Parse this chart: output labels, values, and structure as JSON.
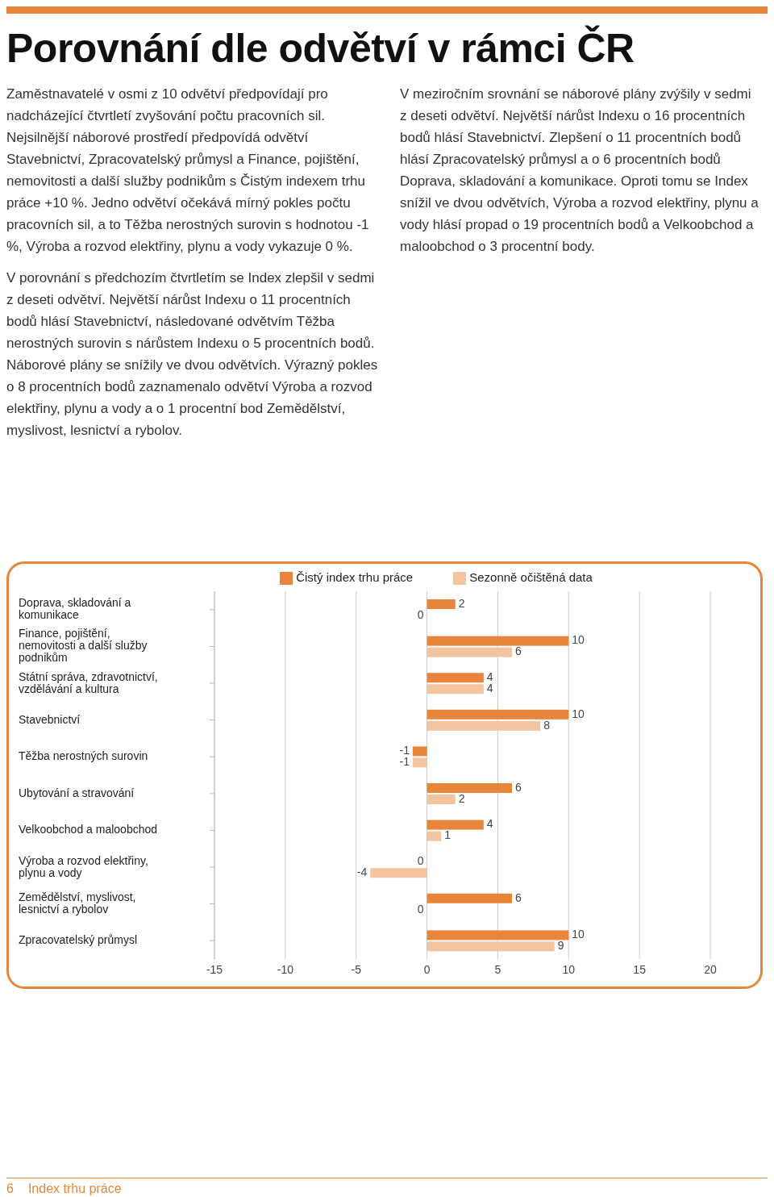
{
  "chart_data": {
    "type": "bar",
    "orientation": "horizontal",
    "title": "Porovnání dle odvětví v rámci ČR",
    "annotations": [
      "Zaměstnavatelé v osmi z 10 odvětví předpovídají pro nadcházející čtvrtletí zvyšování počtu pracovních sil. Nejsilnější náborové prostředí předpovídá odvětví Stavebnictví, Zpracovatelský průmysl a Finance, pojištění, nemovitosti a další služby podnikům s Čistým indexem trhu práce +10 %. Jedno odvětví očekává mírný pokles počtu pracovních sil, a to Těžba nerostných surovin s hodnotou -1 %, Výroba a rozvod elektřiny, plynu a vody vykazuje 0 %.",
      "V porovnání s předchozím čtvrtletím se Index zlepšil v sedmi z deseti odvětví. Největší nárůst Indexu o 11 procentních bodů hlásí Stavebnictví, následované odvětvím Těžba nerostných surovin s nárůstem Indexu o 5 procentních bodů. Náborové plány se snížily ve dvou odvětvích. Výrazný pokles o 8 procentních bodů zaznamenalo odvětví Výroba a rozvod elektřiny, plynu a vody a o 1 procentní bod Zemědělství, myslivost, lesnictví a rybolov.",
      "V meziročním srovnání se náborové plány zvýšily v sedmi z deseti odvětví. Největší nárůst Indexu o 16 procentních bodů hlásí Stavebnictví. Zlepšení o 11 procentních bodů hlásí Zpracovatelský průmysl a o 6 procentních bodů Doprava, skladování a komunikace. Oproti tomu se Index snížil ve dvou odvětvích, Výroba a rozvod elektřiny, plynu a vody hlásí propad o 19 procentních bodů a Velkoobchod a maloobchod o 3 procentní body.",
      "6",
      "Index trhu práce"
    ],
    "categories": [
      "Doprava, skladování a komunikace",
      "Finance, pojištění, nemovitosti a další služby podnikům",
      "Státní správa, zdravotnictví, vzdělávání a kultura",
      "Stavebnictví",
      "Těžba nerostných surovin",
      "Ubytování a stravování",
      "Velkoobchod a maloobchod",
      "Výroba a rozvod elektřiny, plynu a vody",
      "Zemědělství, myslivost, lesnictví a rybolov",
      "Zpracovatelský průmysl"
    ],
    "series": [
      {
        "name": "Čistý index trhu práce",
        "color": "#e8853a",
        "values": [
          2,
          10,
          4,
          10,
          -1,
          6,
          4,
          0,
          6,
          10
        ]
      },
      {
        "name": "Sezonně očištěná data",
        "color": "#f2c4a0",
        "values": [
          0,
          6,
          4,
          8,
          -1,
          2,
          1,
          -4,
          0,
          9
        ]
      }
    ],
    "xlim": [
      -15,
      20
    ],
    "xticks": [
      -15,
      -10,
      -5,
      0,
      5,
      10,
      15,
      20
    ],
    "grid": "x",
    "legend": "top",
    "data_labels": true
  }
}
